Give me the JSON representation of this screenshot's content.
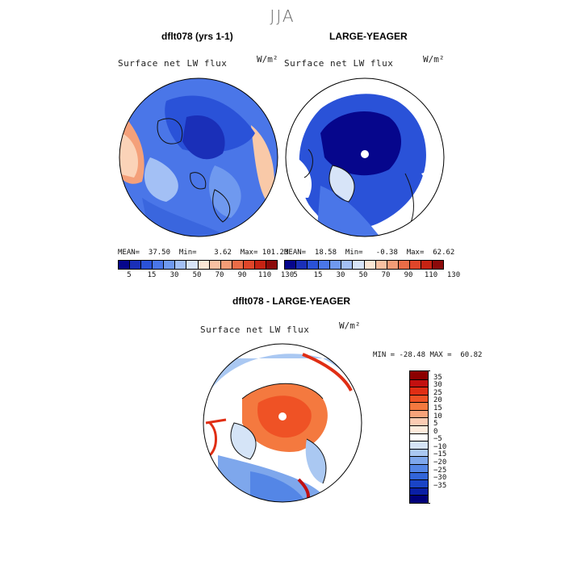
{
  "season": "JJA",
  "panels": [
    {
      "title": "dflt078 (yrs 1-1)",
      "variable": "Surface net LW flux",
      "units": "W/m²",
      "stats_text": "MEAN=  37.50  Min=    3.62  Max= 101.23"
    },
    {
      "title": "LARGE-YEAGER",
      "variable": "Surface net LW flux",
      "units": "W/m²",
      "stats_text": "MEAN=  18.58  Min=   -0.38  Max=  62.62"
    }
  ],
  "colorbar_top": {
    "colors": [
      "#06068c",
      "#1a2fb8",
      "#2a52d8",
      "#4a76e8",
      "#6f99ef",
      "#a3c0f5",
      "#d7e4f8",
      "#fbe6d4",
      "#f9c1a2",
      "#f39c77",
      "#ea6c47",
      "#e0462a",
      "#c62313",
      "#8c0a0a"
    ],
    "labels": [
      "5",
      "15",
      "30",
      "50",
      "70",
      "90",
      "110",
      "130"
    ]
  },
  "diff_panel": {
    "title": "dflt078 - LARGE-YEAGER",
    "variable": "Surface net LW flux",
    "units": "W/m²",
    "minmax_text": "MIN = -28.48 MAX =  60.82"
  },
  "colorbar_diff": {
    "colors": [
      "#8c0000",
      "#c21010",
      "#e02e14",
      "#ef5225",
      "#f4793f",
      "#f7a37a",
      "#fbccb3",
      "#fdebdc",
      "#ffffff",
      "#d5e4f7",
      "#aac8f2",
      "#7ea7ec",
      "#5486e6",
      "#3265d8",
      "#1a44c6",
      "#0a1fa6",
      "#00007a"
    ],
    "labels": [
      "35",
      "30",
      "25",
      "20",
      "15",
      "10",
      "5",
      "0",
      "−5",
      "−10",
      "−15",
      "−20",
      "−25",
      "−30",
      "−35"
    ]
  }
}
